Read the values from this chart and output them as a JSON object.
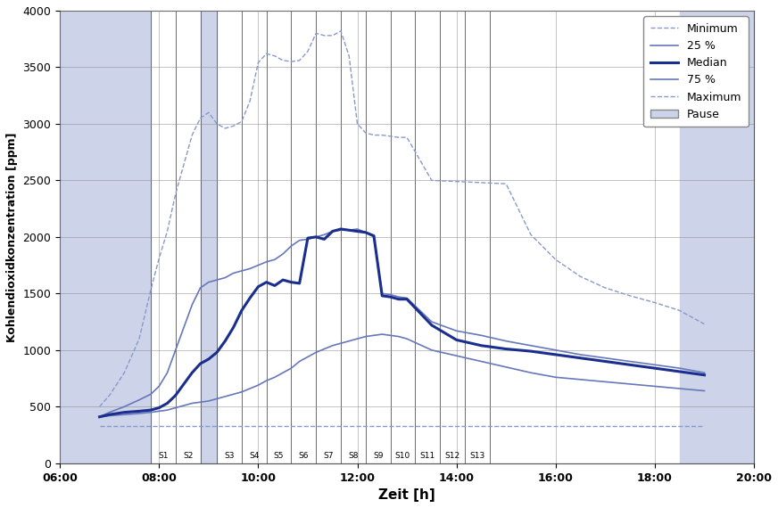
{
  "xlabel": "Zeit [h]",
  "ylabel": "Kohlendioxidkonzentration [ppm]",
  "xlim_hours": [
    6.0,
    20.0
  ],
  "ylim": [
    0,
    4000
  ],
  "yticks": [
    0,
    500,
    1000,
    1500,
    2000,
    2500,
    3000,
    3500,
    4000
  ],
  "xtick_hours": [
    6,
    8,
    10,
    12,
    14,
    16,
    18,
    20
  ],
  "xtick_labels": [
    "06:00",
    "08:00",
    "10:00",
    "12:00",
    "14:00",
    "16:00",
    "18:00",
    "20:00"
  ],
  "color_minimum": "#8899cc",
  "color_25pct": "#6677bb",
  "color_median": "#1a2e8e",
  "color_75pct": "#6677bb",
  "color_maximum": "#8899cc",
  "shade_color": "#cdd3e8",
  "sections": [
    {
      "label": "S1",
      "x_start": 7.833,
      "x_end": 8.333
    },
    {
      "label": "S2",
      "x_start": 8.333,
      "x_end": 8.833
    },
    {
      "label": "S3",
      "x_start": 9.167,
      "x_end": 9.667
    },
    {
      "label": "S4",
      "x_start": 9.667,
      "x_end": 10.167
    },
    {
      "label": "S5",
      "x_start": 10.167,
      "x_end": 10.667
    },
    {
      "label": "S6",
      "x_start": 10.667,
      "x_end": 11.167
    },
    {
      "label": "S7",
      "x_start": 11.167,
      "x_end": 11.667
    },
    {
      "label": "S8",
      "x_start": 11.667,
      "x_end": 12.167
    },
    {
      "label": "S9",
      "x_start": 12.167,
      "x_end": 12.667
    },
    {
      "label": "S10",
      "x_start": 12.667,
      "x_end": 13.167
    },
    {
      "label": "S11",
      "x_start": 13.167,
      "x_end": 13.667
    },
    {
      "label": "S12",
      "x_start": 13.667,
      "x_end": 14.167
    },
    {
      "label": "S13",
      "x_start": 14.167,
      "x_end": 14.667
    }
  ],
  "pre_shade_start": 6.0,
  "pre_shade_end": 7.833,
  "break1_start": 8.833,
  "break1_end": 9.167,
  "break2_start": 18.5,
  "break2_end": 20.0,
  "time_points": [
    6.8,
    7.0,
    7.3,
    7.6,
    7.833,
    8.0,
    8.167,
    8.333,
    8.5,
    8.667,
    8.833,
    9.0,
    9.167,
    9.333,
    9.5,
    9.667,
    9.833,
    10.0,
    10.167,
    10.333,
    10.5,
    10.667,
    10.833,
    11.0,
    11.167,
    11.333,
    11.5,
    11.667,
    11.833,
    12.0,
    12.167,
    12.333,
    12.5,
    12.667,
    12.833,
    13.0,
    13.5,
    14.0,
    14.5,
    15.0,
    15.5,
    16.0,
    16.5,
    17.0,
    17.5,
    18.0,
    18.5,
    19.0
  ],
  "minimum": [
    330,
    330,
    330,
    330,
    330,
    330,
    330,
    330,
    330,
    330,
    330,
    330,
    330,
    330,
    330,
    330,
    330,
    330,
    330,
    330,
    330,
    330,
    330,
    330,
    330,
    330,
    330,
    330,
    330,
    330,
    330,
    330,
    330,
    330,
    330,
    330,
    330,
    330,
    330,
    330,
    330,
    330,
    330,
    330,
    330,
    330,
    330,
    330
  ],
  "pct25": [
    410,
    420,
    430,
    440,
    450,
    460,
    470,
    490,
    510,
    530,
    540,
    550,
    570,
    590,
    610,
    630,
    660,
    690,
    730,
    760,
    800,
    840,
    900,
    940,
    980,
    1010,
    1040,
    1060,
    1080,
    1100,
    1120,
    1130,
    1140,
    1130,
    1120,
    1100,
    1000,
    950,
    900,
    850,
    800,
    760,
    740,
    720,
    700,
    680,
    660,
    640
  ],
  "median": [
    410,
    430,
    450,
    460,
    470,
    490,
    530,
    600,
    700,
    800,
    880,
    920,
    980,
    1080,
    1200,
    1350,
    1460,
    1560,
    1600,
    1570,
    1620,
    1600,
    1590,
    1990,
    2000,
    1980,
    2050,
    2070,
    2060,
    2050,
    2040,
    2010,
    1480,
    1470,
    1450,
    1450,
    1220,
    1090,
    1040,
    1010,
    990,
    960,
    930,
    900,
    870,
    840,
    810,
    780
  ],
  "pct75": [
    410,
    450,
    500,
    560,
    610,
    680,
    800,
    1000,
    1200,
    1400,
    1550,
    1600,
    1620,
    1640,
    1680,
    1700,
    1720,
    1750,
    1780,
    1800,
    1850,
    1920,
    1970,
    1980,
    2000,
    2020,
    2050,
    2060,
    2060,
    2070,
    2040,
    2000,
    1500,
    1490,
    1470,
    1460,
    1250,
    1170,
    1130,
    1080,
    1040,
    1000,
    960,
    930,
    900,
    870,
    840,
    800
  ],
  "maximum": [
    500,
    600,
    800,
    1100,
    1530,
    1810,
    2050,
    2380,
    2640,
    2900,
    3050,
    3100,
    3000,
    2960,
    2980,
    3020,
    3200,
    3540,
    3620,
    3600,
    3560,
    3550,
    3560,
    3640,
    3800,
    3780,
    3780,
    3820,
    3600,
    3000,
    2920,
    2900,
    2900,
    2890,
    2880,
    2880,
    2500,
    2490,
    2480,
    2470,
    2020,
    1800,
    1650,
    1550,
    1480,
    1420,
    1350,
    1230
  ]
}
